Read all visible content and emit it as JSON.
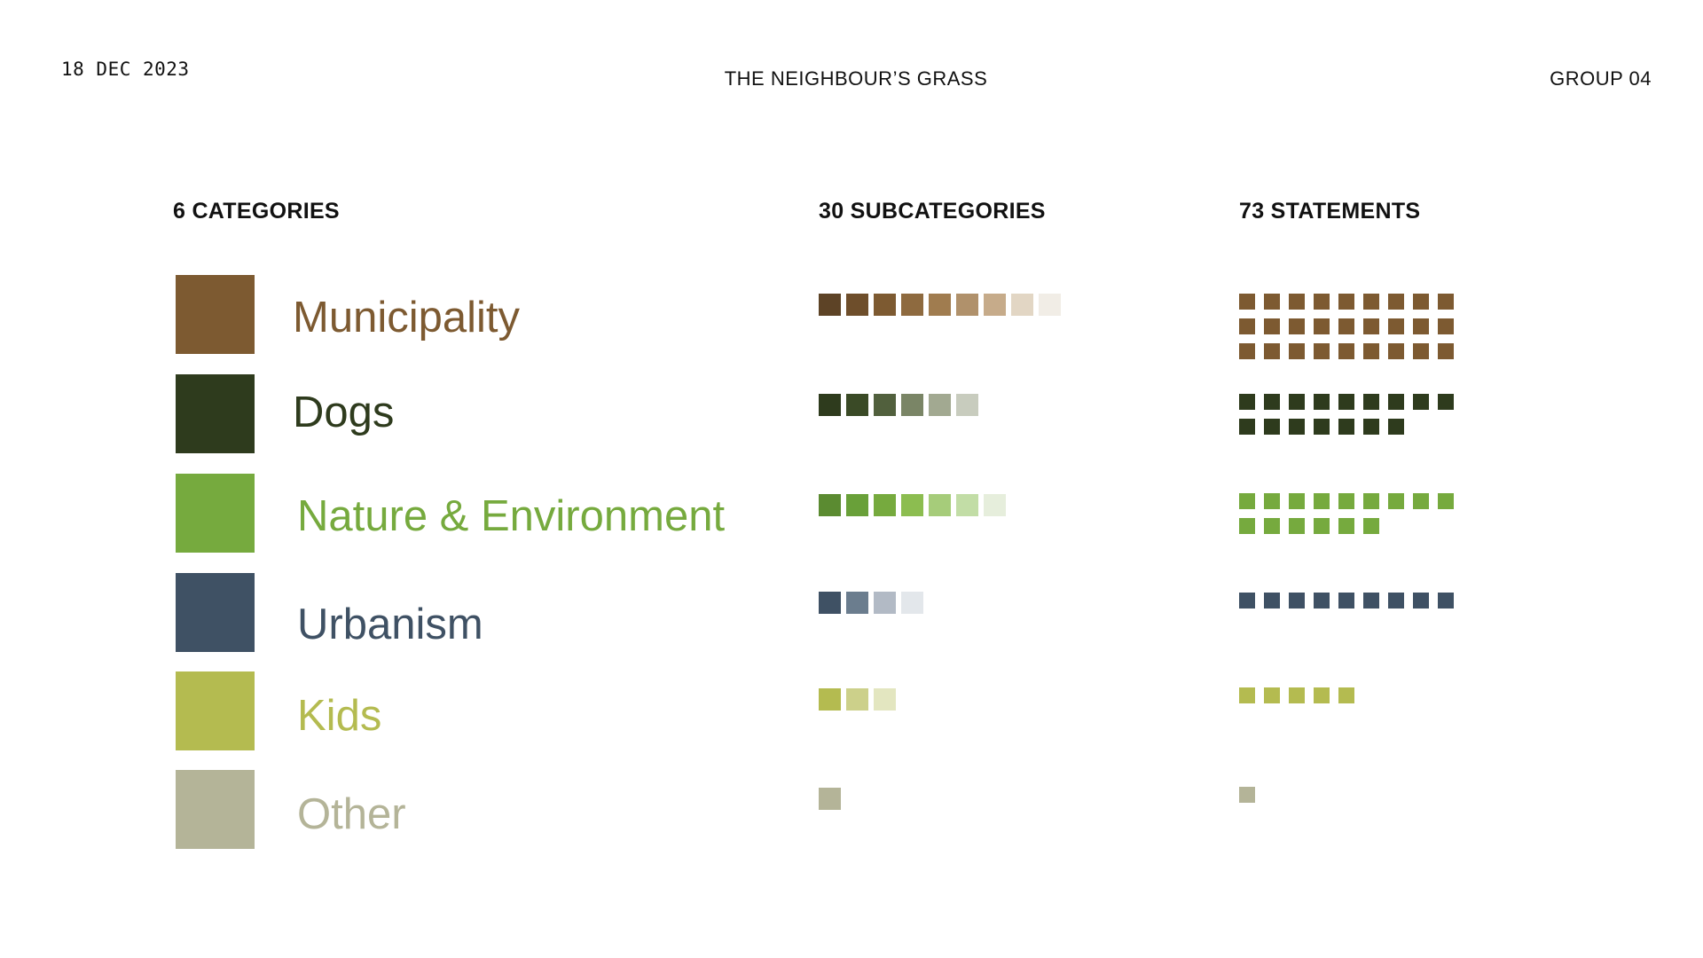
{
  "header": {
    "date": "18 DEC 2023",
    "title": "THE NEIGHBOUR’S GRASS",
    "group": "GROUP 04"
  },
  "columns": {
    "categories": "6 CATEGORIES",
    "subcategories": "30 SUBCATEGORIES",
    "statements": "73 STATEMENTS"
  },
  "categories": [
    {
      "label": "Municipality",
      "color": "#7d5a31",
      "subcategory_colors": [
        "#5d4326",
        "#6e4e2b",
        "#7d5a31",
        "#8e6a3f",
        "#a07c4f",
        "#b0916b",
        "#c6ab8a",
        "#e2d6c4",
        "#f1ede6"
      ],
      "statements": 27
    },
    {
      "label": "Dogs",
      "color": "#2e3b1d",
      "subcategory_colors": [
        "#2e3b1d",
        "#3a4a26",
        "#51603d",
        "#7a8566",
        "#a2a991",
        "#c8ccbe"
      ],
      "statements": 16
    },
    {
      "label": "Nature & Environment",
      "color": "#76aa3e",
      "subcategory_colors": [
        "#5b8b31",
        "#69a039",
        "#76aa3e",
        "#8cbd50",
        "#a6cc7a",
        "#c2dda6",
        "#e6eedc"
      ],
      "statements": 15
    },
    {
      "label": "Urbanism",
      "color": "#3f5164",
      "subcategory_colors": [
        "#3f5164",
        "#6b7d8e",
        "#b2bac5",
        "#e3e7eb"
      ],
      "statements": 9
    },
    {
      "label": "Kids",
      "color": "#b4bb50",
      "subcategory_colors": [
        "#b4bb50",
        "#ccd08a",
        "#e3e6c0"
      ],
      "statements": 5
    },
    {
      "label": "Other",
      "color": "#b4b498",
      "subcategory_colors": [
        "#b4b498"
      ],
      "statements": 1
    }
  ]
}
